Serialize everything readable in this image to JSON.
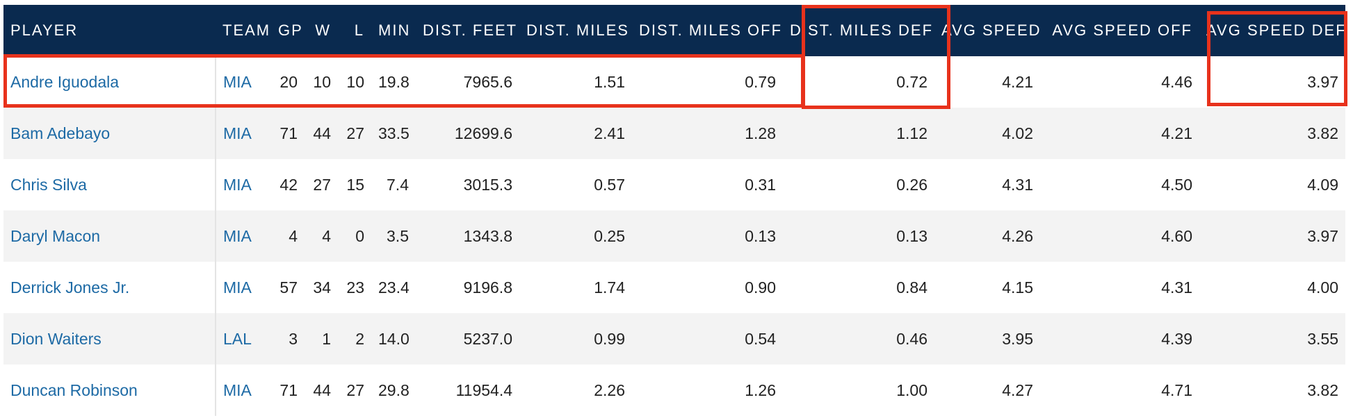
{
  "columns": [
    "PLAYER",
    "TEAM",
    "GP",
    "W",
    "L",
    "MIN",
    "DIST. FEET",
    "DIST. MILES",
    "DIST. MILES OFF",
    "DIST. MILES DEF",
    "AVG SPEED",
    "AVG SPEED OFF",
    "AVG SPEED DEF"
  ],
  "rows": [
    {
      "player": "Andre Iguodala",
      "team": "MIA",
      "gp": "20",
      "w": "10",
      "l": "10",
      "min": "19.8",
      "dist_feet": "7965.6",
      "dist_miles": "1.51",
      "dist_miles_off": "0.79",
      "dist_miles_def": "0.72",
      "avg_speed": "4.21",
      "avg_speed_off": "4.46",
      "avg_speed_def": "3.97"
    },
    {
      "player": "Bam Adebayo",
      "team": "MIA",
      "gp": "71",
      "w": "44",
      "l": "27",
      "min": "33.5",
      "dist_feet": "12699.6",
      "dist_miles": "2.41",
      "dist_miles_off": "1.28",
      "dist_miles_def": "1.12",
      "avg_speed": "4.02",
      "avg_speed_off": "4.21",
      "avg_speed_def": "3.82"
    },
    {
      "player": "Chris Silva",
      "team": "MIA",
      "gp": "42",
      "w": "27",
      "l": "15",
      "min": "7.4",
      "dist_feet": "3015.3",
      "dist_miles": "0.57",
      "dist_miles_off": "0.31",
      "dist_miles_def": "0.26",
      "avg_speed": "4.31",
      "avg_speed_off": "4.50",
      "avg_speed_def": "4.09"
    },
    {
      "player": "Daryl Macon",
      "team": "MIA",
      "gp": "4",
      "w": "4",
      "l": "0",
      "min": "3.5",
      "dist_feet": "1343.8",
      "dist_miles": "0.25",
      "dist_miles_off": "0.13",
      "dist_miles_def": "0.13",
      "avg_speed": "4.26",
      "avg_speed_off": "4.60",
      "avg_speed_def": "3.97"
    },
    {
      "player": "Derrick Jones Jr.",
      "team": "MIA",
      "gp": "57",
      "w": "34",
      "l": "23",
      "min": "23.4",
      "dist_feet": "9196.8",
      "dist_miles": "1.74",
      "dist_miles_off": "0.90",
      "dist_miles_def": "0.84",
      "avg_speed": "4.15",
      "avg_speed_off": "4.31",
      "avg_speed_def": "4.00"
    },
    {
      "player": "Dion Waiters",
      "team": "LAL",
      "gp": "3",
      "w": "1",
      "l": "2",
      "min": "14.0",
      "dist_feet": "5237.0",
      "dist_miles": "0.99",
      "dist_miles_off": "0.54",
      "dist_miles_def": "0.46",
      "avg_speed": "3.95",
      "avg_speed_off": "4.39",
      "avg_speed_def": "3.55"
    },
    {
      "player": "Duncan Robinson",
      "team": "MIA",
      "gp": "71",
      "w": "44",
      "l": "27",
      "min": "29.8",
      "dist_feet": "11954.4",
      "dist_miles": "2.26",
      "dist_miles_off": "1.26",
      "dist_miles_def": "1.00",
      "avg_speed": "4.27",
      "avg_speed_off": "4.71",
      "avg_speed_def": "3.82"
    }
  ],
  "colors": {
    "header_bg": "#0a2a4f",
    "link": "#1d6aa5",
    "highlight": "#e8321c",
    "stripe": "#f3f3f3"
  }
}
